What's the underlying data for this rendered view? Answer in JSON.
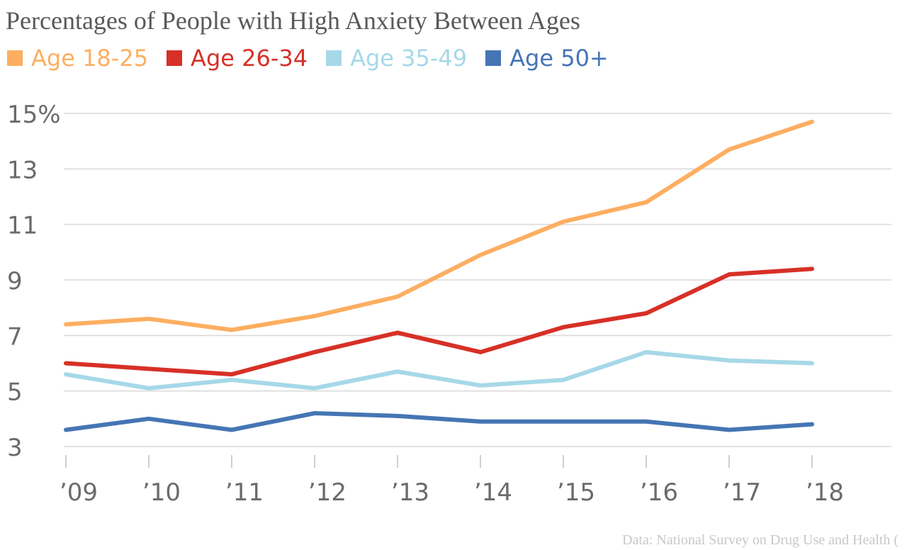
{
  "chart_data": {
    "type": "line",
    "title": "Percentages of People with High Anxiety Between Ages",
    "xlabel": "",
    "ylabel": "",
    "categories": [
      "’09",
      "’10",
      "’11",
      "’12",
      "’13",
      "’14",
      "’15",
      "’16",
      "’17",
      "’18"
    ],
    "x": [
      "2009",
      "2010",
      "2011",
      "2012",
      "2013",
      "2014",
      "2015",
      "2016",
      "2017",
      "2018"
    ],
    "yticks": [
      "15%",
      "13",
      "11",
      "9",
      "7",
      "5",
      "3"
    ],
    "ylim": [
      3,
      15
    ],
    "grid": true,
    "legend_placement": "top-left",
    "series": [
      {
        "name": "Age 18-25",
        "color": "#fdae61",
        "values": [
          7.4,
          7.6,
          7.2,
          7.7,
          8.4,
          9.9,
          11.1,
          11.8,
          13.7,
          14.7
        ]
      },
      {
        "name": "Age 26-34",
        "color": "#d73027",
        "values": [
          6.0,
          5.8,
          5.6,
          6.4,
          7.1,
          6.4,
          7.3,
          7.8,
          9.2,
          9.4
        ]
      },
      {
        "name": "Age 35-49",
        "color": "#a6d8e8",
        "values": [
          5.6,
          5.1,
          5.4,
          5.1,
          5.7,
          5.2,
          5.4,
          6.4,
          6.1,
          6.0
        ]
      },
      {
        "name": "Age 50+",
        "color": "#4575b4",
        "values": [
          3.6,
          4.0,
          3.6,
          4.2,
          4.1,
          3.9,
          3.9,
          3.9,
          3.6,
          3.8
        ]
      }
    ],
    "source": "Data: National Survey on Drug Use and Health ("
  }
}
